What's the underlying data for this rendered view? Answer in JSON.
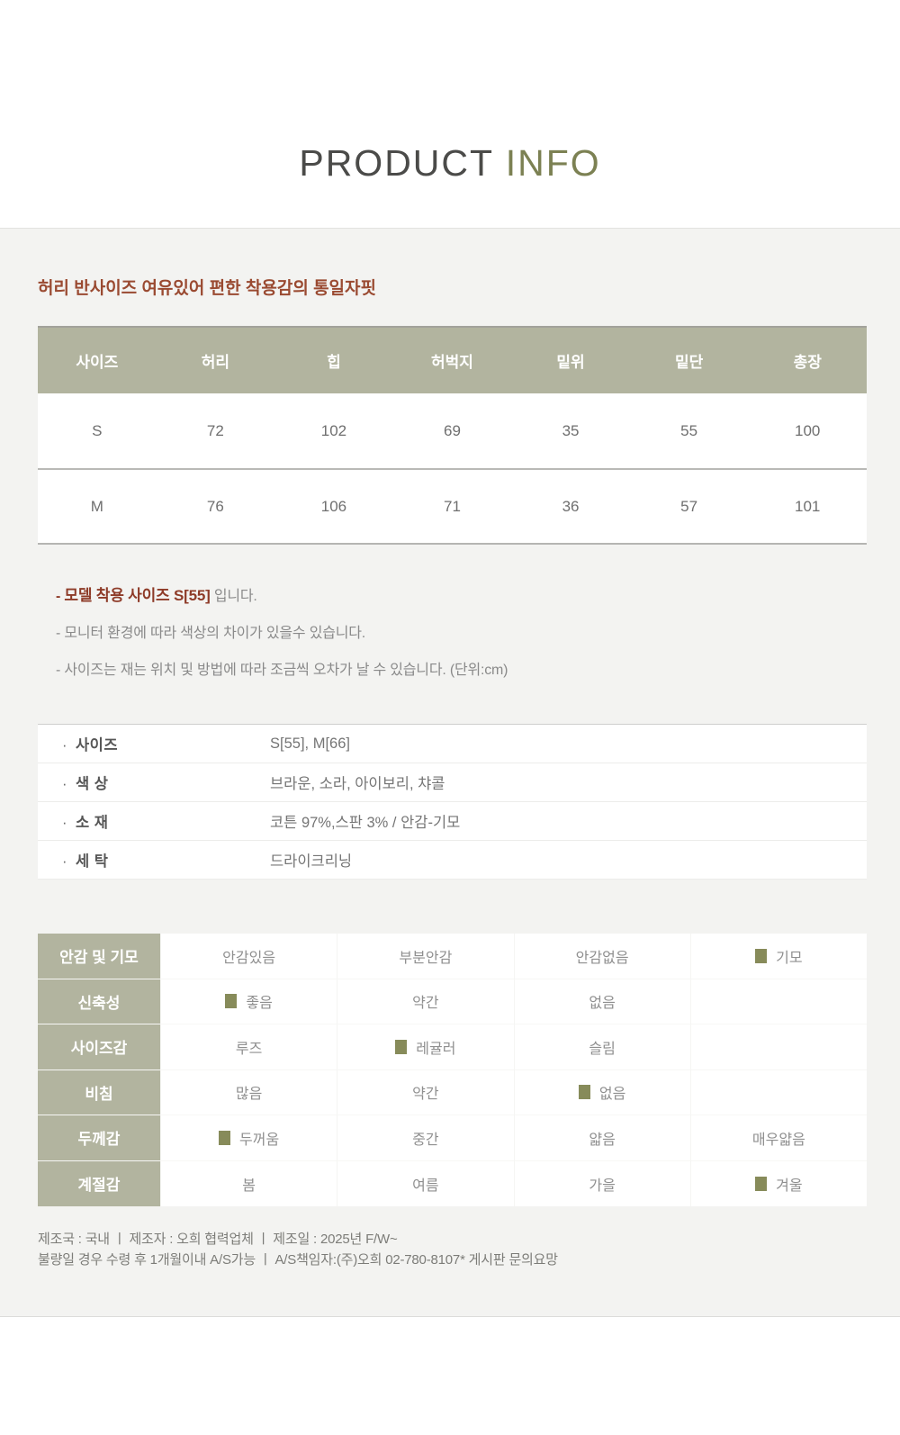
{
  "title": {
    "part1": "PRODUCT ",
    "part2": "INFO"
  },
  "headline": "허리 반사이즈 여유있어 편한 착용감의 통일자핏",
  "size_table": {
    "headers": [
      "사이즈",
      "허리",
      "힙",
      "허벅지",
      "밑위",
      "밑단",
      "총장"
    ],
    "rows": [
      [
        "S",
        "72",
        "102",
        "69",
        "35",
        "55",
        "100"
      ],
      [
        "M",
        "76",
        "106",
        "71",
        "36",
        "57",
        "101"
      ]
    ]
  },
  "notes": [
    {
      "dash": "-",
      "highlight": "모델 착용 사이즈  S[55]",
      "rest": "  입니다."
    },
    {
      "dash": "-",
      "text": "모니터 환경에 따라 색상의 차이가 있을수 있습니다."
    },
    {
      "dash": "-",
      "text": "사이즈는 재는 위치 및 방법에 따라 조금씩 오차가 날 수 있습니다. (단위:cm)"
    }
  ],
  "info_table": [
    {
      "label": "사이즈",
      "value": "S[55],  M[66]"
    },
    {
      "label": "색  상",
      "value": "브라운, 소라, 아이보리, 챠콜"
    },
    {
      "label": "소  재",
      "value": "코튼 97%,스판 3% / 안감-기모"
    },
    {
      "label": "세  탁",
      "value": "드라이크리닝"
    }
  ],
  "attribute_table": {
    "rows": [
      {
        "label": "안감 및 기모",
        "options": [
          {
            "text": "안감있음",
            "checked": false
          },
          {
            "text": "부분안감",
            "checked": false
          },
          {
            "text": "안감없음",
            "checked": false
          },
          {
            "text": "기모",
            "checked": true
          }
        ]
      },
      {
        "label": "신축성",
        "options": [
          {
            "text": "좋음",
            "checked": true
          },
          {
            "text": "약간",
            "checked": false
          },
          {
            "text": "없음",
            "checked": false
          },
          {
            "text": "",
            "checked": false
          }
        ]
      },
      {
        "label": "사이즈감",
        "options": [
          {
            "text": "루즈",
            "checked": false
          },
          {
            "text": "레귤러",
            "checked": true
          },
          {
            "text": "슬림",
            "checked": false
          },
          {
            "text": "",
            "checked": false
          }
        ]
      },
      {
        "label": "비침",
        "options": [
          {
            "text": "많음",
            "checked": false
          },
          {
            "text": "약간",
            "checked": false
          },
          {
            "text": "없음",
            "checked": true
          },
          {
            "text": "",
            "checked": false
          }
        ]
      },
      {
        "label": "두께감",
        "options": [
          {
            "text": "두꺼움",
            "checked": true
          },
          {
            "text": "중간",
            "checked": false
          },
          {
            "text": "얇음",
            "checked": false
          },
          {
            "text": "매우얇음",
            "checked": false
          }
        ]
      },
      {
        "label": "계절감",
        "options": [
          {
            "text": "봄",
            "checked": false
          },
          {
            "text": "여름",
            "checked": false
          },
          {
            "text": "가을",
            "checked": false
          },
          {
            "text": "겨울",
            "checked": true
          }
        ]
      }
    ]
  },
  "footer": {
    "line1": "제조국 :  국내  ㅣ  제조자 :  오희 협력업체  ㅣ  제조일 : 2025년 F/W~",
    "line2": "불량일 경우 수령 후 1개월이내 A/S가능  ㅣ  A/S책임자:(주)오희 02-780-8107* 게시판 문의요망"
  },
  "colors": {
    "accent_olive": "#b2b49f",
    "check_square": "#878b5a",
    "title_olive": "#7c8153",
    "headline_red": "#9a4a31",
    "note_highlight_red": "#8e3b28",
    "panel_bg": "#f3f3f1"
  },
  "info_label_bullet": "·"
}
